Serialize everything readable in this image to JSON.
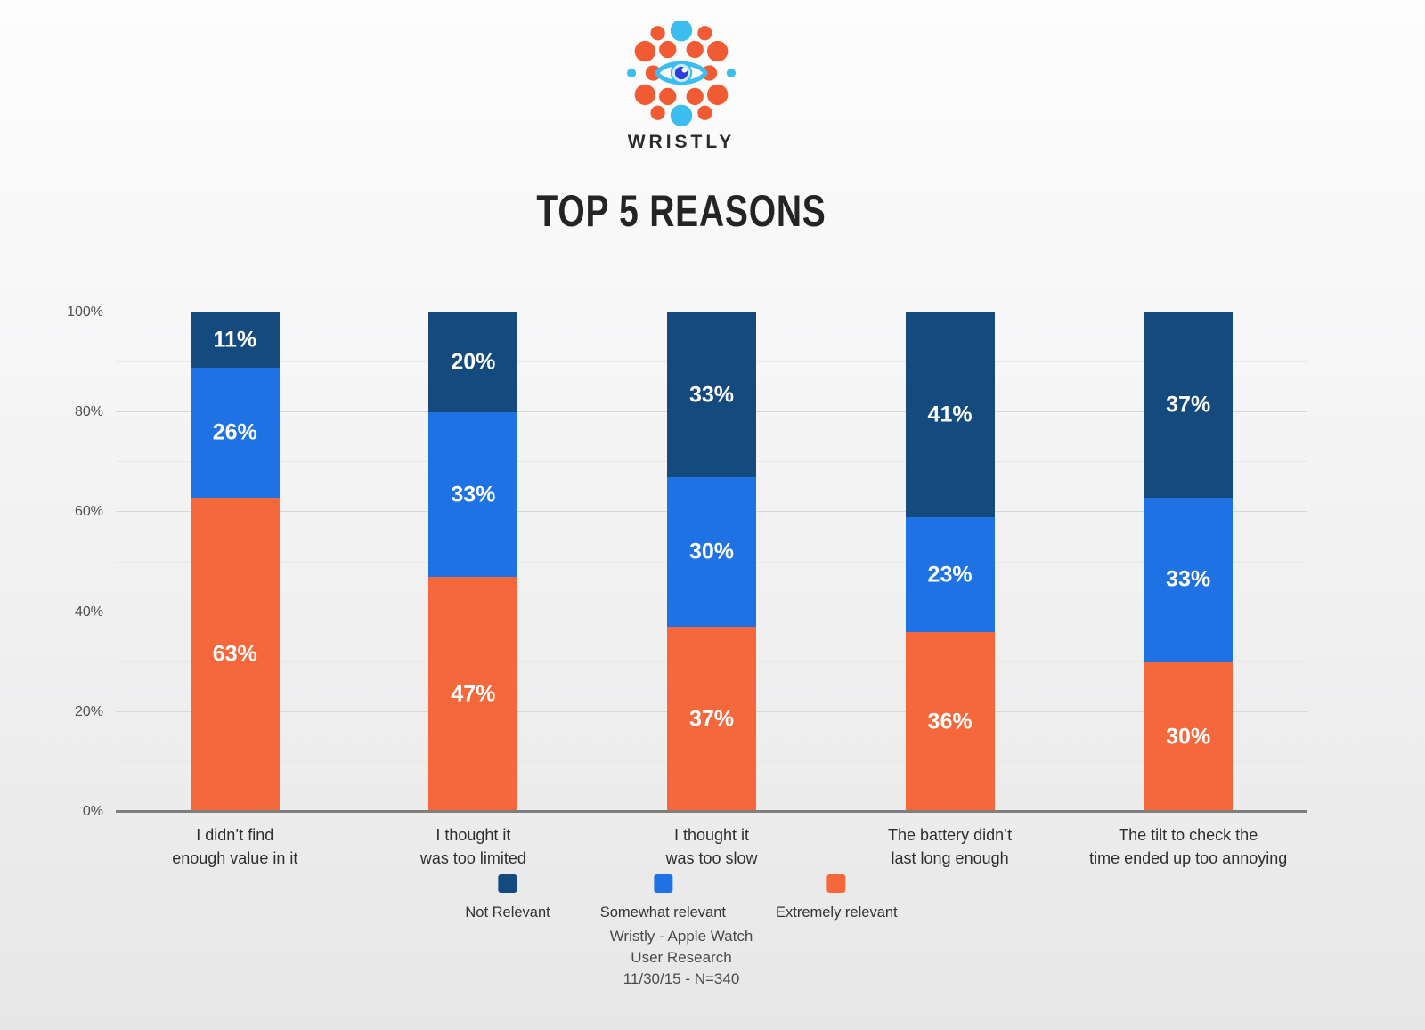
{
  "logo": {
    "wordmark": "WRISTLY"
  },
  "title": "TOP 5 REASONS",
  "chart_data": {
    "type": "bar",
    "variant": "stacked-percent",
    "title": "TOP 5 REASONS",
    "categories": [
      {
        "lines": [
          "I didn’t find",
          "enough value in it"
        ]
      },
      {
        "lines": [
          "I thought it",
          "was too limited"
        ]
      },
      {
        "lines": [
          "I thought it",
          "was too slow"
        ]
      },
      {
        "lines": [
          "The battery didn’t",
          "last long enough"
        ]
      },
      {
        "lines": [
          "The tilt to check the",
          "time ended up too annoying"
        ]
      }
    ],
    "series": [
      {
        "name": "Not Relevant",
        "color": "#154a7f",
        "values": [
          11,
          20,
          33,
          41,
          37
        ]
      },
      {
        "name": "Somewhat relevant",
        "color": "#1e72e4",
        "values": [
          26,
          33,
          30,
          23,
          33
        ]
      },
      {
        "name": "Extremely relevant",
        "color": "#f4683b",
        "values": [
          63,
          47,
          37,
          36,
          30
        ]
      }
    ],
    "value_suffix": "%",
    "y_axis": {
      "ticks": [
        "0%",
        "20%",
        "40%",
        "60%",
        "80%",
        "100%"
      ],
      "tick_values": [
        0,
        20,
        40,
        60,
        80,
        100
      ],
      "minor_tick_values": [
        10,
        30,
        50,
        70,
        90
      ],
      "min": 0,
      "max": 100
    },
    "grid": true,
    "legend_position": "bottom"
  },
  "footer": {
    "lines": [
      "Wristly - Apple Watch",
      "User Research",
      "11/30/15 - N=340"
    ]
  },
  "colors": {
    "not_relevant": "#154a7f",
    "somewhat_relevant": "#1e72e4",
    "extremely_relevant": "#f4683b",
    "logo_orange": "#f15b33",
    "logo_cyan": "#3bbdf0",
    "logo_pupil": "#2b3fd6",
    "axis_line": "#7f7f7f"
  }
}
